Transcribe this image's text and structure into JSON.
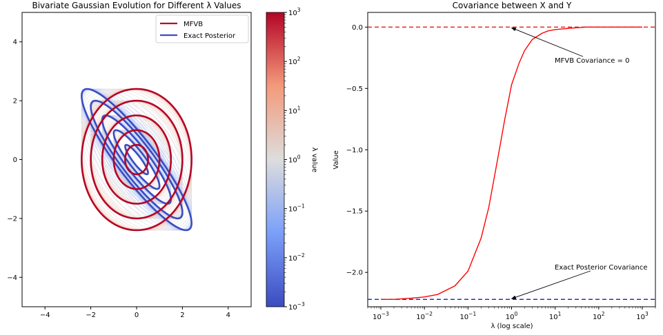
{
  "chart_data": [
    {
      "type": "contour",
      "title": "Bivariate Gaussian Evolution for Different λ Values",
      "xlim": [
        -5,
        5
      ],
      "ylim": [
        -5,
        5
      ],
      "xticks": [
        -4,
        -2,
        0,
        2,
        4
      ],
      "yticks": [
        -4,
        -2,
        0,
        2,
        4
      ],
      "grid": false,
      "legend": {
        "placement": "top-right",
        "entries": [
          {
            "label": "MFVB",
            "color": "#b40426"
          },
          {
            "label": "Exact Posterior",
            "color": "#3b4cc0"
          }
        ]
      },
      "lambda_range": [
        0.001,
        1000
      ],
      "mfvb_covariance": [
        [
          1,
          0
        ],
        [
          0,
          1
        ]
      ],
      "exact_covariance": [
        [
          1,
          -0.9
        ],
        [
          -0.9,
          1
        ]
      ],
      "contour_levels_sigma": [
        0.5,
        1,
        1.5,
        2,
        2.4
      ],
      "colorbar": {
        "label": "λ value",
        "scale": "log",
        "range": [
          0.001,
          1000
        ],
        "colormap": "coolwarm",
        "ticks": [
          {
            "base": "10",
            "exp": "−3"
          },
          {
            "base": "10",
            "exp": "−2"
          },
          {
            "base": "10",
            "exp": "−1"
          },
          {
            "base": "10",
            "exp": "0"
          },
          {
            "base": "10",
            "exp": "1"
          },
          {
            "base": "10",
            "exp": "2"
          },
          {
            "base": "10",
            "exp": "3"
          }
        ]
      }
    },
    {
      "type": "line",
      "title": "Covariance between X and Y",
      "xlabel": "λ (log scale)",
      "ylabel": "Value",
      "xscale": "log",
      "xlim": [
        0.0005,
        2000
      ],
      "ylim": [
        -2.28,
        0.12
      ],
      "yticks": [
        "−2.0",
        "−1.5",
        "−1.0",
        "−0.5",
        "0.0"
      ],
      "ytick_values": [
        -2.0,
        -1.5,
        -1.0,
        -0.5,
        0.0
      ],
      "xticks": [
        {
          "base": "10",
          "exp": "−3"
        },
        {
          "base": "10",
          "exp": "−2"
        },
        {
          "base": "10",
          "exp": "−1"
        },
        {
          "base": "10",
          "exp": "0"
        },
        {
          "base": "10",
          "exp": "1"
        },
        {
          "base": "10",
          "exp": "2"
        },
        {
          "base": "10",
          "exp": "3"
        }
      ],
      "series": [
        {
          "color": "#ff0000",
          "x": [
            0.001,
            0.002,
            0.005,
            0.01,
            0.02,
            0.05,
            0.1,
            0.2,
            0.3,
            0.5,
            0.7,
            1,
            1.5,
            2,
            3,
            5,
            7,
            10,
            20,
            50,
            100,
            200,
            500,
            1000
          ],
          "y": [
            -2.22,
            -2.22,
            -2.21,
            -2.2,
            -2.18,
            -2.11,
            -1.99,
            -1.72,
            -1.47,
            -1.04,
            -0.75,
            -0.47,
            -0.29,
            -0.19,
            -0.1,
            -0.05,
            -0.03,
            -0.02,
            -0.01,
            0.0,
            0.0,
            0.0,
            0.0,
            0.0
          ]
        }
      ],
      "reference_lines": [
        {
          "y": 0.0,
          "color": "#e31a1c",
          "style": "dashed"
        },
        {
          "y": -2.22,
          "color": "#1f1fb0",
          "style": "dashed"
        }
      ],
      "annotations": [
        {
          "text": "MFVB Covariance = 0",
          "point": [
            1,
            0.0
          ]
        },
        {
          "text": "Exact Posterior Covariance",
          "point": [
            1,
            -2.22
          ]
        }
      ]
    }
  ]
}
